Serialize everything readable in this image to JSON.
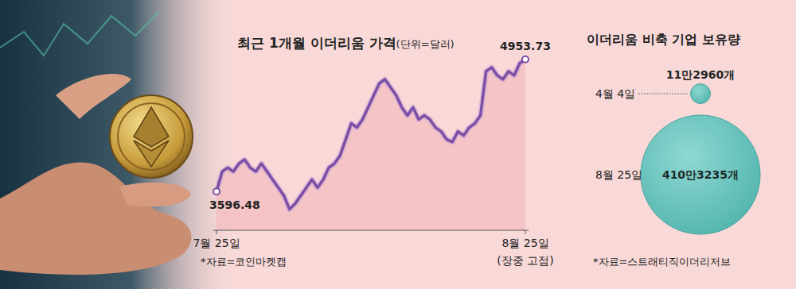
{
  "chart_data": [
    {
      "type": "line",
      "title": "최근 1개월 이더리움 가격",
      "subtitle": "(단위=달러)",
      "categories": [
        "7월 25일",
        null,
        null,
        null,
        null,
        null,
        null,
        null,
        null,
        null,
        null,
        null,
        null,
        null,
        null,
        null,
        null,
        null,
        null,
        null,
        null,
        null,
        null,
        null,
        null,
        null,
        null,
        null,
        null,
        null,
        null,
        null,
        null,
        null,
        null,
        null,
        null,
        null,
        null,
        null,
        null,
        null,
        null,
        null,
        null,
        null,
        null,
        null,
        null,
        null,
        null,
        null,
        null,
        null,
        null,
        "8월 25일"
      ],
      "values": [
        3596.48,
        3802,
        3843,
        3802,
        3884,
        3925,
        3843,
        3802,
        3884,
        3802,
        3720,
        3637,
        3555,
        3415,
        3473,
        3555,
        3637,
        3720,
        3637,
        3720,
        3843,
        3884,
        3966,
        4131,
        4296,
        4254,
        4337,
        4460,
        4584,
        4707,
        4748,
        4666,
        4584,
        4460,
        4378,
        4460,
        4337,
        4378,
        4337,
        4254,
        4213,
        4131,
        4106,
        4213,
        4172,
        4254,
        4296,
        4378,
        4830,
        4871,
        4789,
        4748,
        4830,
        4789,
        4913,
        4953.73
      ],
      "value_labels": [
        "3596.48",
        null,
        null,
        null,
        null,
        null,
        null,
        null,
        null,
        null,
        null,
        null,
        null,
        null,
        null,
        null,
        null,
        null,
        null,
        null,
        null,
        null,
        null,
        null,
        null,
        null,
        null,
        null,
        null,
        null,
        null,
        null,
        null,
        null,
        null,
        null,
        null,
        null,
        null,
        null,
        null,
        null,
        null,
        null,
        null,
        null,
        null,
        null,
        null,
        null,
        null,
        null,
        null,
        null,
        null,
        "4953.73"
      ],
      "annotations": [
        "(장중 고점)"
      ],
      "source": "*자료=코인마켓캡",
      "ylim": [
        3200,
        5000
      ],
      "tick_labels": "x",
      "data_labels": true,
      "grid": false,
      "color": "#7b4fa6"
    },
    {
      "type": "bubble",
      "title": "이더리움 비축 기업 보유량",
      "categories": [
        "4월 4일",
        "8월 25일"
      ],
      "values": [
        112960,
        4103235
      ],
      "value_labels": [
        "11만2960개",
        "410만3235개"
      ],
      "source": "*자료=스트래티직이더리저브",
      "data_labels": true,
      "color": "#6cc6c0"
    }
  ]
}
